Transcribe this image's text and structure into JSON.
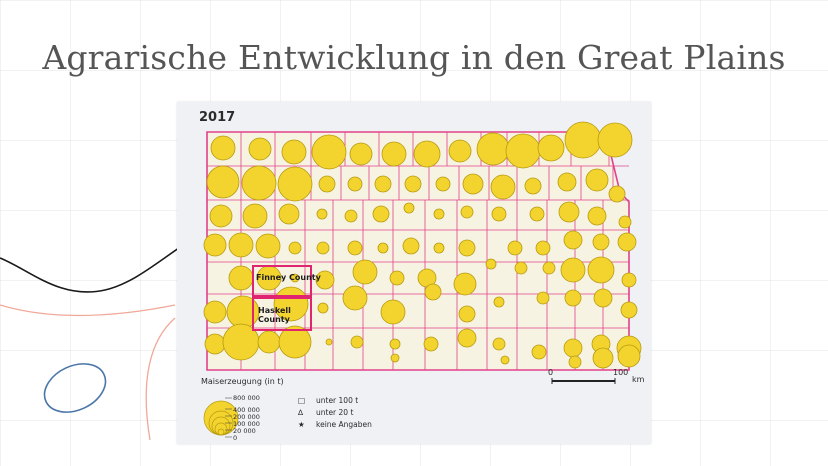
{
  "slide": {
    "title": "Agrarische Entwicklung in den Great Plains"
  },
  "map": {
    "year": "2017",
    "highlight_counties": [
      {
        "name": "Finney County"
      },
      {
        "name_line1": "Haskell",
        "name_line2": "County"
      }
    ],
    "scale": {
      "start": "0",
      "end": "100",
      "unit": "km"
    },
    "legend": {
      "title": "Maiserzeugung (in t)",
      "circle_values": [
        "800 000",
        "400 000",
        "200 000",
        "100 000",
        "20 000",
        "0"
      ],
      "symbols": [
        {
          "icon": "square",
          "glyph": "□",
          "text": "unter 100 t"
        },
        {
          "icon": "triangle",
          "glyph": "∆",
          "text": "unter 20 t"
        },
        {
          "icon": "star",
          "glyph": "★",
          "text": "keine Angaben"
        }
      ]
    },
    "colors": {
      "circle_fill": "#f3d42e",
      "circle_stroke": "#b79a10",
      "county_fill": "#f7f3e3",
      "border": "#e2428a",
      "highlight": "#e0246f"
    }
  }
}
